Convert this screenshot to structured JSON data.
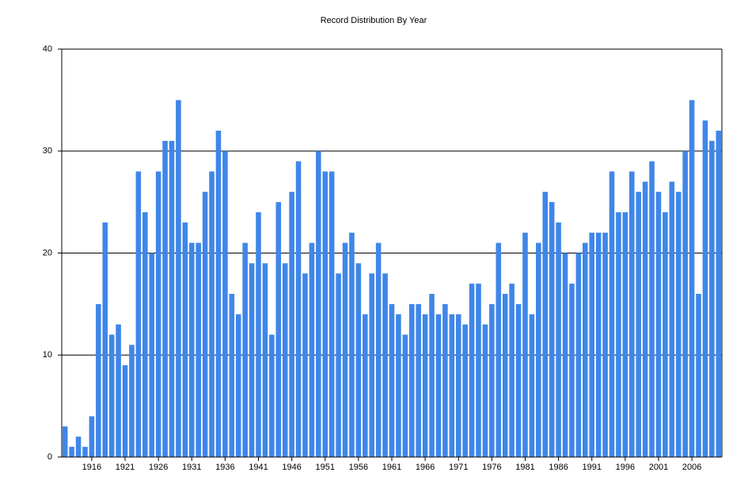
{
  "chart_data": {
    "type": "bar",
    "title": "Record Distribution By Year",
    "categories": [
      null,
      null,
      null,
      null,
      "1916",
      null,
      null,
      null,
      null,
      "1921",
      null,
      null,
      null,
      null,
      "1926",
      null,
      null,
      null,
      null,
      "1931",
      null,
      null,
      null,
      null,
      "1936",
      null,
      null,
      null,
      null,
      "1941",
      null,
      null,
      null,
      null,
      "1946",
      null,
      null,
      null,
      null,
      "1951",
      null,
      null,
      null,
      null,
      "1956",
      null,
      null,
      null,
      null,
      "1961",
      null,
      null,
      null,
      null,
      "1966",
      null,
      null,
      null,
      null,
      "1971",
      null,
      null,
      null,
      null,
      "1976",
      null,
      null,
      null,
      null,
      "1981",
      null,
      null,
      null,
      null,
      "1986",
      null,
      null,
      null,
      null,
      "1991",
      null,
      null,
      null,
      null,
      "1996",
      null,
      null,
      null,
      null,
      "2001",
      null,
      null,
      null,
      null,
      "2006",
      null,
      null,
      null,
      null
    ],
    "values": [
      3,
      1,
      2,
      1,
      4,
      15,
      23,
      12,
      13,
      9,
      11,
      28,
      24,
      20,
      28,
      31,
      31,
      35,
      23,
      21,
      21,
      26,
      28,
      32,
      30,
      16,
      14,
      21,
      19,
      24,
      19,
      12,
      25,
      19,
      26,
      29,
      18,
      21,
      30,
      28,
      28,
      18,
      21,
      22,
      19,
      14,
      18,
      21,
      18,
      15,
      14,
      12,
      15,
      15,
      14,
      16,
      14,
      15,
      14,
      14,
      13,
      17,
      17,
      13,
      15,
      21,
      16,
      17,
      15,
      22,
      14,
      21,
      26,
      25,
      23,
      20,
      17,
      20,
      21,
      22,
      22,
      22,
      28,
      24,
      24,
      28,
      26,
      27,
      29,
      26,
      24,
      27,
      26,
      30,
      35,
      16,
      33,
      31,
      32
    ],
    "color": "#3f86e8",
    "ylim": [
      0,
      40
    ],
    "yticks": [
      0,
      10,
      20,
      30,
      40
    ],
    "grid": true
  }
}
